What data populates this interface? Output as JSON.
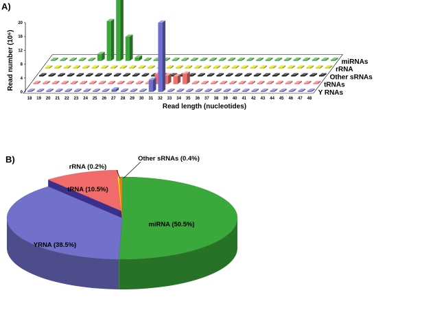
{
  "panel_a_label": "A)",
  "panel_b_label": "B)",
  "chart_data": [
    {
      "type": "bar",
      "subtype": "3d-bar",
      "xlabel": "Read length (nucleotides)",
      "ylabel": "Read number (10⁶)",
      "ylim": [
        0,
        20
      ],
      "yticks": [
        0,
        4,
        8,
        12,
        16,
        20
      ],
      "categories": [
        "18",
        "19",
        "20",
        "21",
        "22",
        "23",
        "24",
        "25",
        "26",
        "27",
        "28",
        "29",
        "30",
        "31",
        "32",
        "33",
        "34",
        "35",
        "36",
        "37",
        "38",
        "39",
        "40",
        "41",
        "42",
        "43",
        "44",
        "45",
        "46",
        "47",
        "48"
      ],
      "series": [
        {
          "name": "Y RNAs",
          "color": "#6f6fd2",
          "values": [
            0,
            0,
            0,
            0,
            0,
            0,
            0,
            0,
            0,
            0.7,
            0,
            0,
            0,
            3.5,
            20,
            0,
            0,
            0,
            0,
            0,
            0,
            0,
            0,
            0,
            0,
            0,
            0,
            0,
            0,
            0,
            0
          ]
        },
        {
          "name": "tRNAs",
          "color": "#f07070",
          "values": [
            0,
            0,
            0,
            0,
            0,
            0,
            0,
            0,
            0,
            0,
            0,
            0,
            0,
            2.8,
            2.5,
            2.3,
            3.0,
            0,
            0,
            0,
            0,
            0,
            0,
            0,
            0,
            0,
            0,
            0,
            0,
            0,
            0
          ]
        },
        {
          "name": "Other sRNAs",
          "color": "#000000",
          "values": [
            0,
            0,
            0,
            0,
            0,
            0,
            0,
            0,
            0,
            0,
            0,
            0,
            0,
            0,
            0,
            0,
            0,
            0,
            0,
            0,
            0,
            0,
            0,
            0,
            0,
            0,
            0,
            0,
            0,
            0,
            0
          ]
        },
        {
          "name": "rRNA",
          "color": "#d8d800",
          "values": [
            0,
            0,
            0,
            0,
            0,
            0,
            0,
            0,
            0,
            0,
            0,
            0,
            0,
            0,
            0,
            0,
            0,
            0,
            0,
            0,
            0,
            0,
            0,
            0,
            0,
            0,
            0,
            0,
            0,
            0,
            0
          ]
        },
        {
          "name": "miRNAs",
          "color": "#3aa83a",
          "values": [
            0,
            0,
            0,
            0,
            0,
            2.0,
            11.5,
            20.5,
            7.0,
            1.0,
            0,
            0,
            0,
            0,
            0,
            0,
            0,
            0,
            0,
            0,
            0,
            0,
            0,
            0,
            0,
            0,
            0,
            0,
            0,
            0,
            0
          ]
        }
      ]
    },
    {
      "type": "pie",
      "subtype": "3d-pie",
      "slices": [
        {
          "label": "miRNA (50.5%)",
          "value": 50.5,
          "color": "#3aa83a"
        },
        {
          "label": "YRNA (38.5%)",
          "value": 38.5,
          "color": "#7171cc"
        },
        {
          "label": "tRNA (10.5%)",
          "value": 10.5,
          "color": "#f26b6b"
        },
        {
          "label": "rRNA (0.2%)",
          "value": 0.2,
          "color": "#f0f000"
        },
        {
          "label": "Other sRNAs (0.4%)",
          "value": 0.4,
          "color": "#e08020"
        }
      ]
    }
  ]
}
